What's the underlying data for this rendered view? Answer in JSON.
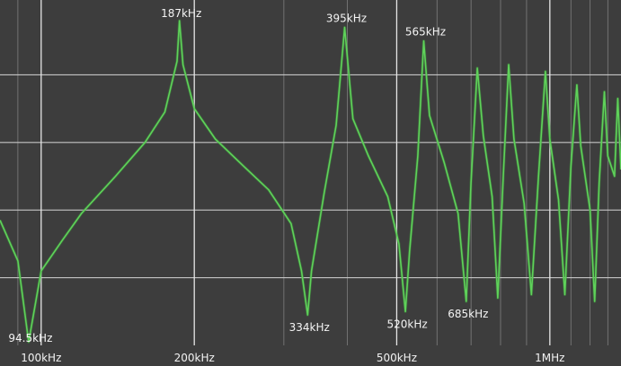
{
  "chart_data": {
    "type": "line",
    "title": "",
    "xlabel": "",
    "ylabel": "",
    "x_scale": "log",
    "x_unit": "kHz",
    "x_ticks": [
      {
        "value": 100,
        "label": "100kHz"
      },
      {
        "value": 200,
        "label": "200kHz"
      },
      {
        "value": 500,
        "label": "500kHz"
      },
      {
        "value": 1000,
        "label": "1MHz"
      }
    ],
    "x_minor_ticks": [
      90,
      300,
      400,
      600,
      700,
      800,
      900,
      1100,
      1200,
      1300
    ],
    "xlim": [
      83,
      1380
    ],
    "ylim": [
      0,
      10
    ],
    "grid": true,
    "line_color": "#5fd25a",
    "annotations": [
      {
        "x": 94.5,
        "label": "94.5kHz",
        "kind": "minimum"
      },
      {
        "x": 187,
        "label": "187kHz",
        "kind": "maximum"
      },
      {
        "x": 334,
        "label": "334kHz",
        "kind": "minimum"
      },
      {
        "x": 395,
        "label": "395kHz",
        "kind": "maximum"
      },
      {
        "x": 520,
        "label": "520kHz",
        "kind": "minimum"
      },
      {
        "x": 565,
        "label": "565kHz",
        "kind": "maximum"
      },
      {
        "x": 685,
        "label": "685kHz",
        "kind": "minimum"
      }
    ],
    "series": [
      {
        "points": [
          [
            83,
            3.7
          ],
          [
            90,
            2.5
          ],
          [
            94.5,
            0.1
          ],
          [
            100,
            2.2
          ],
          [
            110,
            3.1
          ],
          [
            120,
            3.9
          ],
          [
            140,
            5.0
          ],
          [
            160,
            6.0
          ],
          [
            175,
            6.9
          ],
          [
            185,
            8.4
          ],
          [
            187,
            9.6
          ],
          [
            190,
            8.3
          ],
          [
            200,
            7.0
          ],
          [
            220,
            6.1
          ],
          [
            250,
            5.3
          ],
          [
            280,
            4.6
          ],
          [
            310,
            3.6
          ],
          [
            325,
            2.2
          ],
          [
            334,
            0.9
          ],
          [
            340,
            2.2
          ],
          [
            360,
            4.5
          ],
          [
            380,
            6.5
          ],
          [
            395,
            9.4
          ],
          [
            410,
            6.7
          ],
          [
            440,
            5.6
          ],
          [
            480,
            4.4
          ],
          [
            505,
            3.0
          ],
          [
            520,
            1.0
          ],
          [
            530,
            2.8
          ],
          [
            550,
            5.6
          ],
          [
            565,
            9.0
          ],
          [
            580,
            6.8
          ],
          [
            620,
            5.4
          ],
          [
            660,
            3.9
          ],
          [
            685,
            1.3
          ],
          [
            700,
            4.8
          ],
          [
            720,
            8.2
          ],
          [
            740,
            6.2
          ],
          [
            770,
            4.4
          ],
          [
            790,
            1.4
          ],
          [
            810,
            5.0
          ],
          [
            830,
            8.3
          ],
          [
            850,
            6.1
          ],
          [
            890,
            4.2
          ],
          [
            920,
            1.5
          ],
          [
            950,
            5.0
          ],
          [
            980,
            8.1
          ],
          [
            1000,
            6.1
          ],
          [
            1040,
            4.3
          ],
          [
            1070,
            1.5
          ],
          [
            1100,
            5.3
          ],
          [
            1130,
            7.7
          ],
          [
            1150,
            5.9
          ],
          [
            1200,
            4.0
          ],
          [
            1225,
            1.3
          ],
          [
            1250,
            4.8
          ],
          [
            1280,
            7.5
          ],
          [
            1300,
            5.6
          ],
          [
            1340,
            5.0
          ],
          [
            1360,
            7.3
          ],
          [
            1380,
            5.2
          ]
        ]
      }
    ]
  }
}
